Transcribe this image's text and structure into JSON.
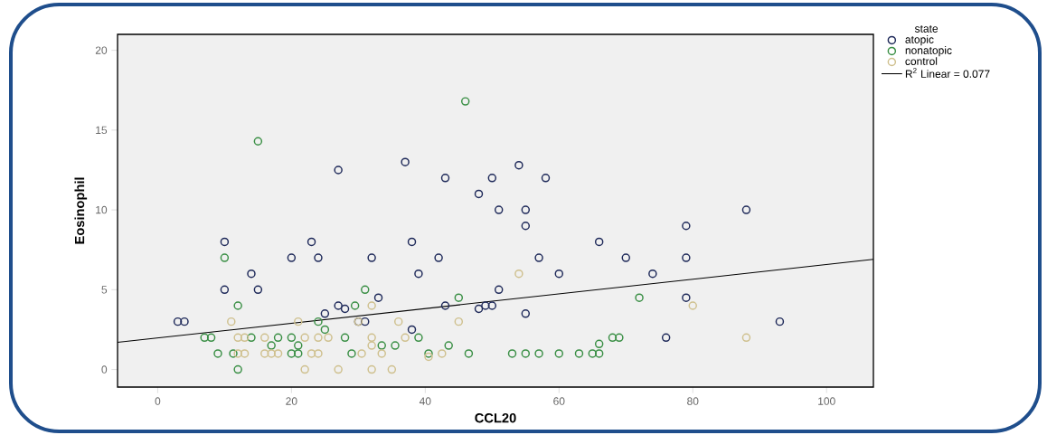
{
  "chart_data": {
    "type": "scatter",
    "xlabel": "CCL20",
    "ylabel": "Eosinophil",
    "legend_title": "state",
    "legend": "right",
    "marker": "circle",
    "xlim": [
      -6,
      107
    ],
    "ylim": [
      -1.1,
      21
    ],
    "xticks": [
      0,
      20,
      40,
      60,
      80,
      100
    ],
    "yticks": [
      0,
      5,
      10,
      15,
      20
    ],
    "series": [
      {
        "name": "atopic",
        "color": "#1f2a5a",
        "x": [
          3,
          4,
          10,
          10,
          14,
          15,
          20,
          23,
          24,
          27,
          25,
          27,
          28,
          32,
          33,
          30,
          31,
          37,
          38,
          39,
          42,
          43,
          43,
          48,
          50,
          51,
          51,
          48,
          49,
          50,
          54,
          55,
          55,
          55,
          58,
          57,
          60,
          66,
          70,
          74,
          76,
          79,
          79,
          79,
          88,
          93,
          38
        ],
        "values": [
          3,
          3,
          8,
          5,
          6,
          5,
          7,
          8,
          7,
          12.5,
          3.5,
          4,
          3.8,
          7,
          4.5,
          3,
          3,
          13,
          8,
          6,
          7,
          12,
          4,
          11,
          12,
          10,
          5,
          3.8,
          4,
          4,
          12.8,
          10,
          9,
          3.5,
          12,
          7,
          6,
          8,
          7,
          6,
          2,
          9,
          7,
          4.5,
          10,
          3,
          2.5
        ]
      },
      {
        "name": "nonatopic",
        "color": "#3a8f45",
        "x": [
          15,
          46,
          10,
          12,
          31,
          45,
          72,
          7,
          8,
          9,
          11.3,
          12,
          14,
          17,
          18,
          20,
          20,
          21,
          21,
          24,
          25,
          28,
          29,
          29.5,
          33.5,
          35.5,
          39,
          43.5,
          46.5,
          40.5,
          68,
          69,
          66,
          53,
          55,
          57,
          60,
          63,
          65,
          66
        ],
        "values": [
          14.3,
          16.8,
          7,
          4,
          5,
          4.5,
          4.5,
          2,
          2,
          1,
          1,
          0,
          2,
          1.5,
          2,
          2,
          1,
          1,
          1.5,
          3,
          2.5,
          2,
          1,
          4,
          1.5,
          1.5,
          2,
          1.5,
          1,
          1,
          2,
          2,
          1.6,
          1,
          1,
          1,
          1,
          1,
          1,
          1
        ]
      },
      {
        "name": "control",
        "color": "#cfc08e",
        "x": [
          11,
          32,
          21,
          30,
          36,
          45,
          12,
          13,
          16,
          22,
          24,
          25.5,
          32,
          37,
          32,
          12,
          13,
          16,
          17,
          18,
          23,
          24,
          30.5,
          33.5,
          40.5,
          42.5,
          22,
          27,
          32,
          35,
          54,
          80,
          88
        ],
        "values": [
          3,
          4,
          3,
          3,
          3,
          3,
          2,
          2,
          2,
          2,
          2,
          2,
          2,
          2,
          1.5,
          1,
          1,
          1,
          1,
          1,
          1,
          1,
          1,
          1,
          0.8,
          1,
          0,
          0,
          0,
          0,
          6,
          4,
          2
        ]
      },
      {
        "name": "R$^{2}$ Linear = 0.077",
        "type": "line",
        "marker": "none",
        "color": "#000000",
        "x": [
          -6,
          107
        ],
        "values": [
          1.7,
          6.9
        ]
      }
    ]
  }
}
